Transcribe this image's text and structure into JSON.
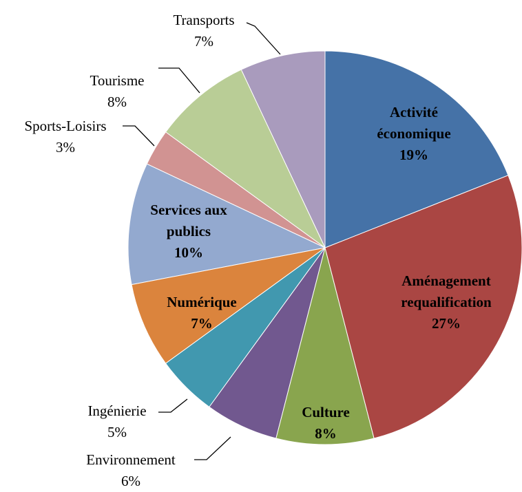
{
  "chart_data": {
    "type": "pie",
    "categories": [
      "Activité économique",
      "Aménagement requalification",
      "Culture",
      "Environnement",
      "Ingénierie",
      "Numérique",
      "Services aux publics",
      "Sports-Loisirs",
      "Tourisme",
      "Transports"
    ],
    "values": [
      19,
      27,
      8,
      6,
      5,
      7,
      10,
      3,
      8,
      7
    ],
    "value_labels": [
      "19%",
      "27%",
      "8%",
      "6%",
      "5%",
      "7%",
      "10%",
      "3%",
      "8%",
      "7%"
    ],
    "colors": [
      "#4572a7",
      "#aa4643",
      "#89a54e",
      "#71588f",
      "#4198af",
      "#db843d",
      "#93a9cf",
      "#d19392",
      "#b9cd96",
      "#a99bbd"
    ]
  }
}
